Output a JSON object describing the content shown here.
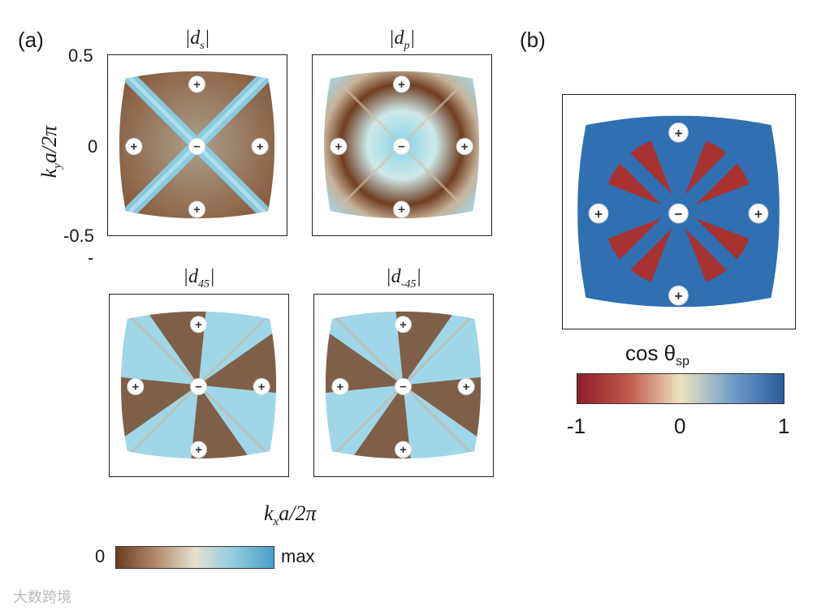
{
  "panel_a": {
    "label": "(a)",
    "y_axis_label": "k",
    "y_axis_sub": "y",
    "y_axis_rest": "a/2π",
    "x_axis_label": "k",
    "x_axis_sub": "x",
    "x_axis_rest": "a/2π",
    "y_ticks": [
      "0.5",
      "0",
      "-0.5"
    ],
    "dash_mark": "-",
    "maps": [
      {
        "title_pre": "|d",
        "title_sub": "s",
        "title_post": "|",
        "pattern": "s"
      },
      {
        "title_pre": "|d",
        "title_sub": "p",
        "title_post": "|",
        "pattern": "p"
      },
      {
        "title_pre": "|d",
        "title_sub": "45",
        "title_post": "|",
        "pattern": "45"
      },
      {
        "title_pre": "|d",
        "title_sub": "-45",
        "title_post": "|",
        "pattern": "m45"
      }
    ],
    "colorbar": {
      "min_label": "0",
      "max_label": "max",
      "colors": [
        "#6b3d22",
        "#b08a6a",
        "#e6e0cc",
        "#8fcbe0",
        "#4a9fc8"
      ]
    }
  },
  "panel_b": {
    "label": "(b)",
    "colorbar_title": "cos θ",
    "colorbar_title_sub": "sp",
    "ticks": [
      "-1",
      "0",
      "1"
    ],
    "colorbar_colors": [
      "#8b1f2a",
      "#c05a4a",
      "#efe2c0",
      "#6fa0c8",
      "#2a5a9a"
    ]
  },
  "markers": {
    "plus": "+",
    "minus": "−"
  },
  "watermark": "大数跨境",
  "colors": {
    "brown": "#7a4a2c",
    "cyan": "#86d3ea",
    "red": "#a8322f",
    "blue": "#2f6fb2"
  }
}
